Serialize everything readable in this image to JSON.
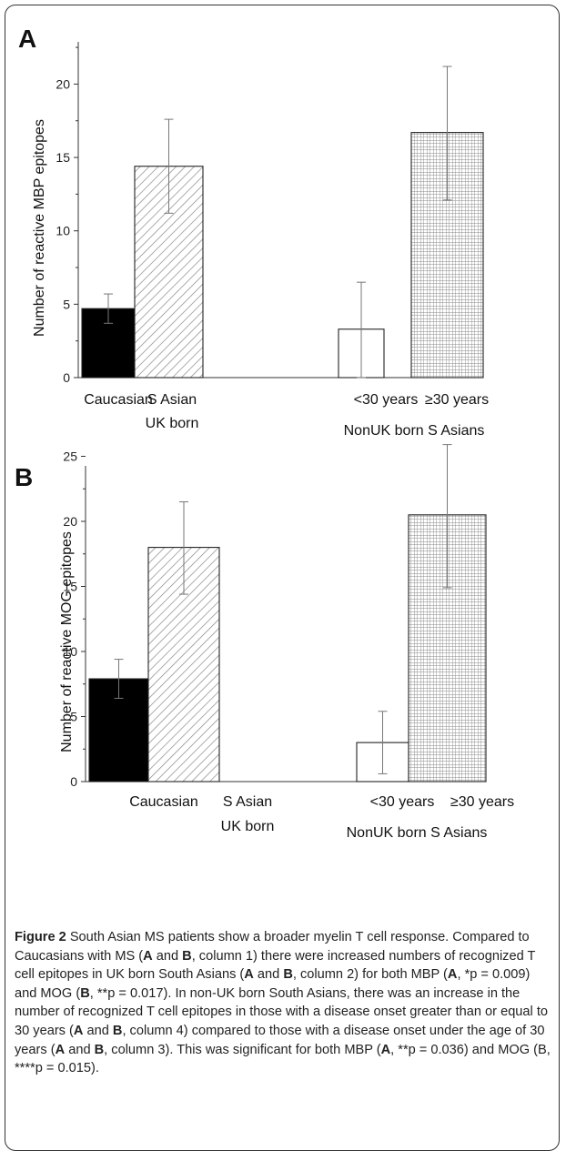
{
  "chart_data": [
    {
      "type": "bar",
      "panel": "A",
      "ylabel": "Number of reactive MBP epitopes",
      "ylim": [
        0,
        23
      ],
      "yticks": [
        0,
        5,
        10,
        15,
        20
      ],
      "category_labels": [
        {
          "line1": "Caucasian",
          "line2": ""
        },
        {
          "line1": "S Asian",
          "line2": "UK born"
        },
        {
          "line1": "<30 years",
          "line2": ""
        },
        {
          "line1": "≥30 years",
          "line2": ""
        }
      ],
      "group_label": "NonUK born S Asians",
      "values": [
        4.7,
        14.4,
        3.3,
        16.7
      ],
      "error_low": [
        3.7,
        11.2,
        0.0,
        12.1
      ],
      "error_high": [
        5.7,
        17.6,
        6.5,
        21.2
      ],
      "fills": [
        "solid",
        "diagonal",
        "empty",
        "grid"
      ],
      "bar_color": "#000000"
    },
    {
      "type": "bar",
      "panel": "B",
      "ylabel": "Number of reactive MOG epitopes",
      "ylim": [
        0,
        27
      ],
      "yticks": [
        0,
        5,
        10,
        15,
        20,
        25
      ],
      "category_labels": [
        {
          "line1": "Caucasian",
          "line2": ""
        },
        {
          "line1": "S Asian",
          "line2": "UK born"
        },
        {
          "line1": "<30 years",
          "line2": ""
        },
        {
          "line1": "≥30 years",
          "line2": ""
        }
      ],
      "group_label": "NonUK born S Asians",
      "values": [
        7.9,
        18.0,
        3.0,
        20.5
      ],
      "error_low": [
        6.4,
        14.4,
        0.6,
        14.9
      ],
      "error_high": [
        9.4,
        21.5,
        5.4,
        25.9
      ],
      "fills": [
        "solid",
        "diagonal",
        "empty",
        "grid"
      ],
      "bar_color": "#000000"
    }
  ],
  "caption": {
    "figure_label": "Figure 2",
    "title": " South Asian MS patients show a broader myelin T cell response.",
    "body": [
      {
        "t": " Compared to Caucasians with MS ("
      },
      {
        "b": "A"
      },
      {
        "t": " and "
      },
      {
        "b": "B"
      },
      {
        "t": ", column 1) there were increased numbers of recognized T cell epitopes in UK born South Asians ("
      },
      {
        "b": "A"
      },
      {
        "t": " and "
      },
      {
        "b": "B"
      },
      {
        "t": ", column 2) for both MBP ("
      },
      {
        "b": "A"
      },
      {
        "t": ", *p = 0.009) and MOG ("
      },
      {
        "b": "B"
      },
      {
        "t": ", **p = 0.017). In non-UK born South Asians, there was an increase in the number of recognized T cell epitopes in those with a disease onset greater than or equal to 30 years ("
      },
      {
        "b": "A"
      },
      {
        "t": " and "
      },
      {
        "b": "B"
      },
      {
        "t": ", column 4) compared to those with a disease onset under the age of 30 years ("
      },
      {
        "b": "A"
      },
      {
        "t": " and "
      },
      {
        "b": "B"
      },
      {
        "t": ", column 3). This was significant for both MBP ("
      },
      {
        "b": "A"
      },
      {
        "t": ", **p = 0.036) and MOG (B, ****p = 0.015)."
      }
    ]
  }
}
